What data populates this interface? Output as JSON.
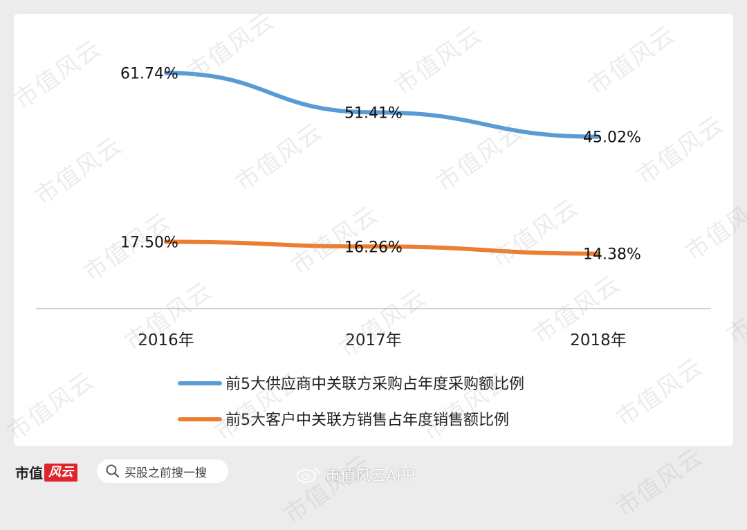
{
  "chart_data": {
    "type": "line",
    "categories": [
      "2016年",
      "2017年",
      "2018年"
    ],
    "series": [
      {
        "name": "前5大供应商中关联方采购占年度采购额比例",
        "values": [
          61.74,
          51.41,
          45.02
        ],
        "labels": [
          "61.74%",
          "51.41%",
          "45.02%"
        ],
        "color": "#5b9bd5"
      },
      {
        "name": "前5大客户中关联方销售占年度销售额比例",
        "values": [
          17.5,
          16.26,
          14.38
        ],
        "labels": [
          "17.50%",
          "16.26%",
          "14.38%"
        ],
        "color": "#ed7d31"
      }
    ],
    "ylim": [
      0,
      70
    ],
    "grid": false,
    "legend": "bottom"
  },
  "watermark": "市值风云",
  "footer": {
    "brand": "市值",
    "brand_logo": "风云",
    "search_placeholder": "买股之前搜一搜",
    "app_name": "市值风云APP"
  }
}
